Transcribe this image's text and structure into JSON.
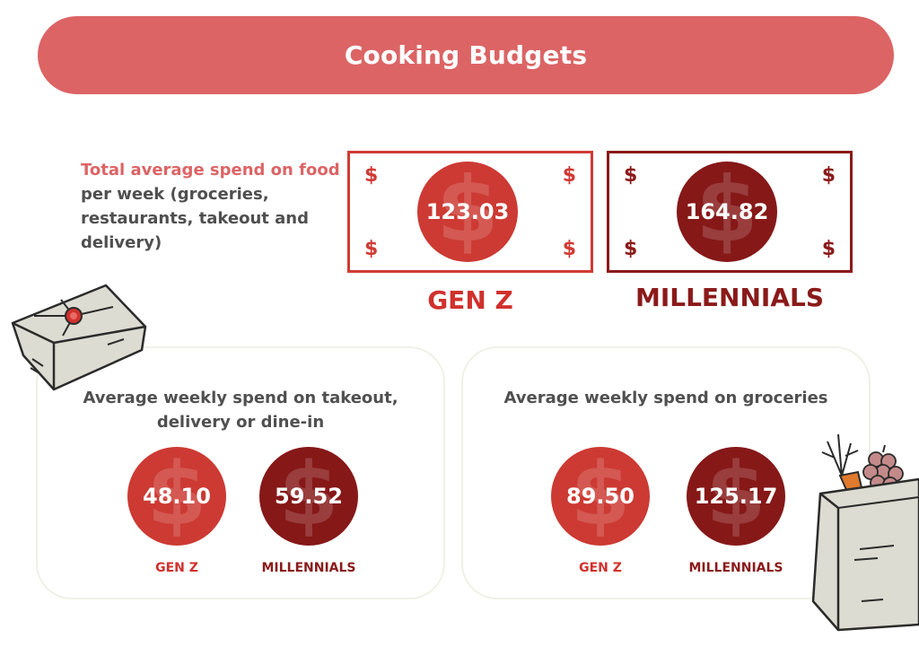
{
  "title": "Cooking Budgets",
  "intro": {
    "highlight": "Total average spend on food",
    "rest": " per week (groceries, restaurants, takeout and delivery)"
  },
  "total": {
    "genz": {
      "value": "123.03",
      "label": "GEN Z"
    },
    "millennials": {
      "value": "164.82",
      "label": "MILLENNIALS"
    }
  },
  "takeout": {
    "title": "Average weekly spend on takeout, delivery or dine-in",
    "genz": {
      "value": "48.10",
      "label": "GEN Z"
    },
    "millennials": {
      "value": "59.52",
      "label": "MILLENNIALS"
    }
  },
  "groceries": {
    "title": "Average weekly spend on groceries",
    "genz": {
      "value": "89.50",
      "label": "GEN Z"
    },
    "millennials": {
      "value": "125.17",
      "label": "MILLENNIALS"
    }
  },
  "symbols": {
    "dollar": "$"
  },
  "colors": {
    "banner": "#dc6465",
    "genz": "#cc3a33",
    "millennials": "#861818",
    "text": "#4f4f4f"
  },
  "icons": [
    "takeout-box-icon",
    "grocery-bag-icon",
    "dollar-icon"
  ]
}
